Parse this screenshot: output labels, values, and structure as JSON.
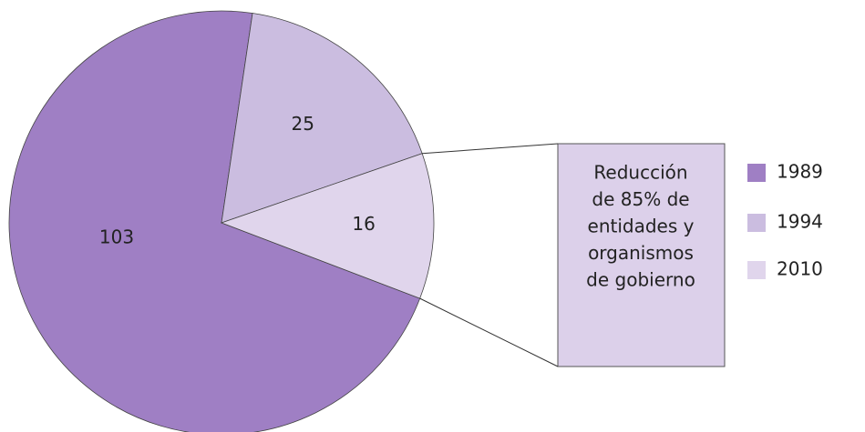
{
  "chart_data": {
    "type": "pie",
    "categories": [
      "1989",
      "1994",
      "2010"
    ],
    "values": [
      103,
      25,
      16
    ],
    "colors": [
      "#9f7fc4",
      "#cbbde0",
      "#e0d5ec"
    ],
    "legend": "right",
    "annotation": [
      "Reducción",
      "de 85% de",
      "entidades y",
      "organismos",
      "de gobierno"
    ]
  }
}
